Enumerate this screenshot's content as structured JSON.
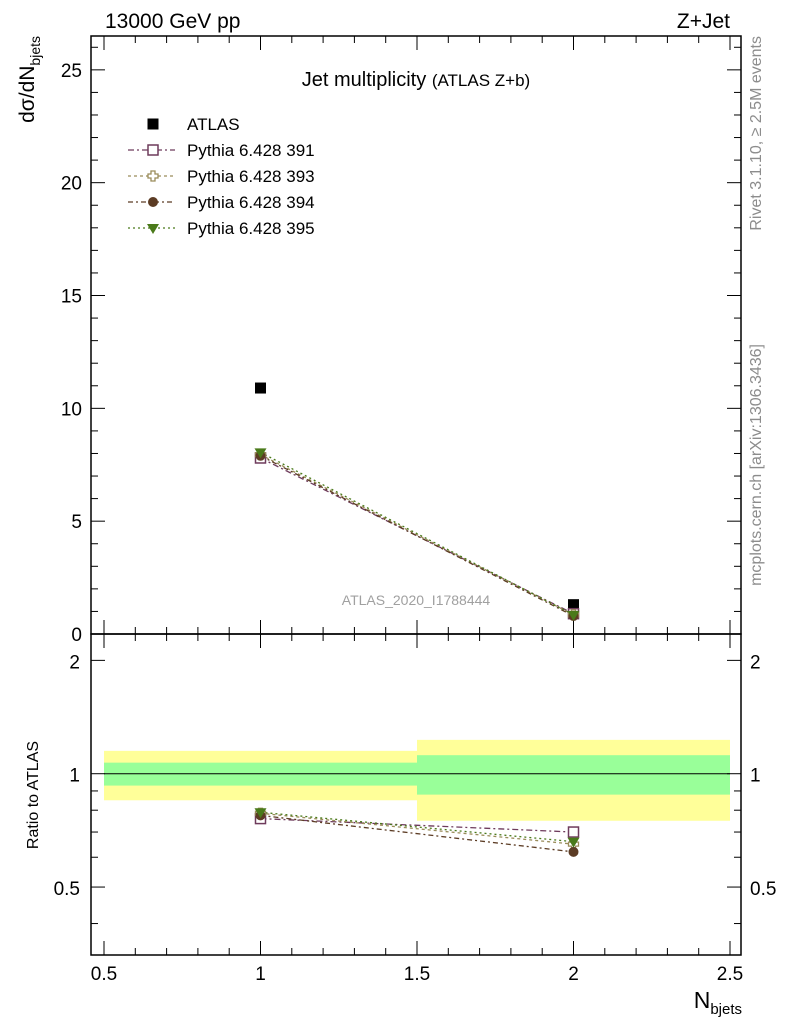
{
  "header": {
    "left": "13000 GeV pp",
    "right": "Z+Jet"
  },
  "side_text": {
    "rivet": "Rivet 3.1.10, ≥ 2.5M events",
    "mcplots": "mcplots.cern.ch [arXiv:1306.3436]"
  },
  "chart_data": [
    {
      "type": "scatter",
      "title": "Jet multiplicity",
      "title_suffix": "(ATLAS Z+b)",
      "watermark": "ATLAS_2020_I1788444",
      "ylabel": "dσ/dN",
      "ylabel_sub": "bjets",
      "xlim": [
        0.5,
        2.5
      ],
      "ylim": [
        0,
        26.5
      ],
      "yticks": [
        0,
        5,
        10,
        15,
        20,
        25
      ],
      "x": [
        1,
        2
      ],
      "series": [
        {
          "name": "ATLAS",
          "values": [
            10.9,
            1.3
          ],
          "color": "#000000",
          "marker": "filled-square"
        },
        {
          "name": "Pythia 6.428 391",
          "values": [
            7.8,
            0.9
          ],
          "color": "#6e3b5c",
          "marker": "open-square"
        },
        {
          "name": "Pythia 6.428 393",
          "values": [
            7.95,
            0.85
          ],
          "color": "#9a8c5a",
          "marker": "open-cross"
        },
        {
          "name": "Pythia 6.428 394",
          "values": [
            7.9,
            0.8
          ],
          "color": "#5c3c24",
          "marker": "filled-circle"
        },
        {
          "name": "Pythia 6.428 395",
          "values": [
            8.05,
            0.85
          ],
          "color": "#4a7a1a",
          "marker": "filled-triangle-down"
        }
      ],
      "legend_position": "top-left"
    },
    {
      "type": "scatter",
      "ylabel": "Ratio to ATLAS",
      "xlabel": "N",
      "xlabel_sub": "bjets",
      "xlim": [
        0.5,
        2.5
      ],
      "ylim": [
        0.33,
        2.35
      ],
      "yticks": [
        0.5,
        1,
        2
      ],
      "xticks": [
        0.5,
        1,
        1.5,
        2,
        2.5
      ],
      "bands": [
        {
          "x_range": [
            0.5,
            1.5
          ],
          "inner": [
            0.93,
            1.07
          ],
          "outer": [
            0.85,
            1.15
          ]
        },
        {
          "x_range": [
            1.5,
            2.5
          ],
          "inner": [
            0.88,
            1.12
          ],
          "outer": [
            0.75,
            1.23
          ]
        }
      ],
      "x": [
        1,
        2
      ],
      "series": [
        {
          "name": "Pythia 6.428 391",
          "values": [
            0.76,
            0.7
          ]
        },
        {
          "name": "Pythia 6.428 393",
          "values": [
            0.785,
            0.65
          ]
        },
        {
          "name": "Pythia 6.428 394",
          "values": [
            0.775,
            0.62
          ]
        },
        {
          "name": "Pythia 6.428 395",
          "values": [
            0.79,
            0.66
          ]
        }
      ]
    }
  ],
  "ratio_yticklabels": [
    "0.5",
    "1",
    "2"
  ]
}
